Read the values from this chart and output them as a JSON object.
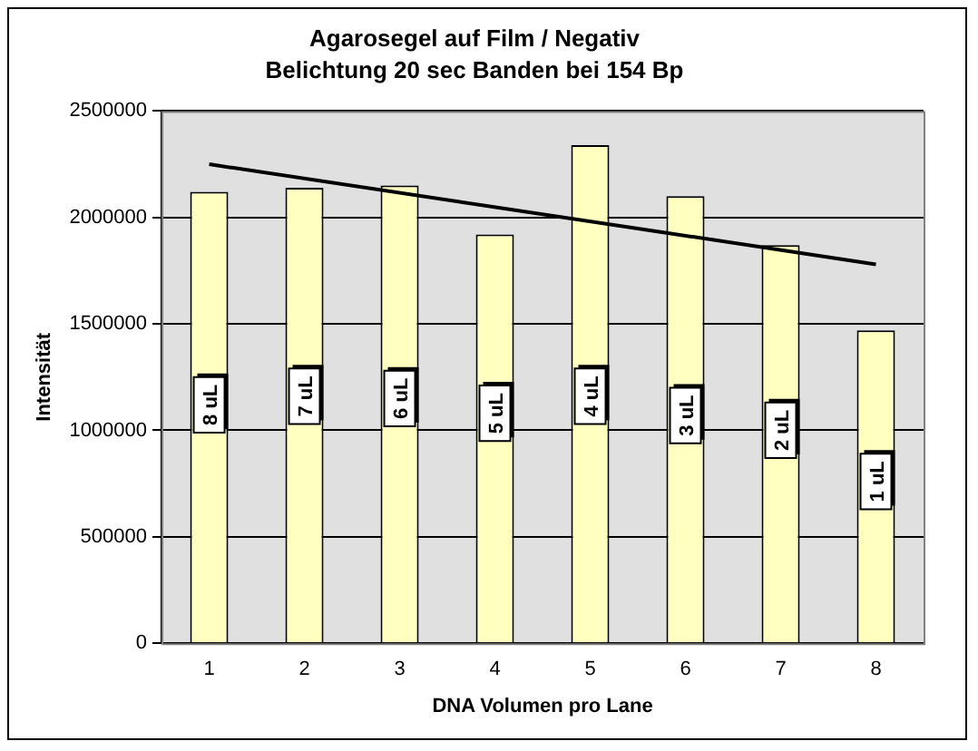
{
  "chart_data": {
    "type": "bar",
    "title": "Agarosegel auf Film / Negativ",
    "subtitle": "Belichtung 20 sec Banden bei 154 Bp",
    "xlabel": "DNA Volumen pro Lane",
    "ylabel": "Intensität",
    "categories": [
      "1",
      "2",
      "3",
      "4",
      "5",
      "6",
      "7",
      "8"
    ],
    "series": [
      {
        "color": "#ffffc0",
        "values": [
          2120000,
          2140000,
          2150000,
          1920000,
          2340000,
          2100000,
          1870000,
          1470000
        ]
      },
      {
        "type": "line",
        "color": "#000000",
        "values": [
          2250000,
          null,
          null,
          null,
          null,
          null,
          null,
          1780000
        ]
      }
    ],
    "ylim": [
      0,
      2500000
    ],
    "yticks": [
      0,
      500000,
      1000000,
      1500000,
      2000000,
      2500000
    ],
    "grid": "y",
    "legend": false,
    "annotations": [
      {
        "text": "8 uL",
        "x": "1",
        "y": 1120000
      },
      {
        "text": "7 uL",
        "x": "2",
        "y": 1160000
      },
      {
        "text": "6 uL",
        "x": "3",
        "y": 1150000
      },
      {
        "text": "5 uL",
        "x": "4",
        "y": 1080000
      },
      {
        "text": "4 uL",
        "x": "5",
        "y": 1160000
      },
      {
        "text": "3 uL",
        "x": "6",
        "y": 1070000
      },
      {
        "text": "2 uL",
        "x": "7",
        "y": 1000000
      },
      {
        "text": "1 uL",
        "x": "8",
        "y": 760000
      }
    ]
  }
}
